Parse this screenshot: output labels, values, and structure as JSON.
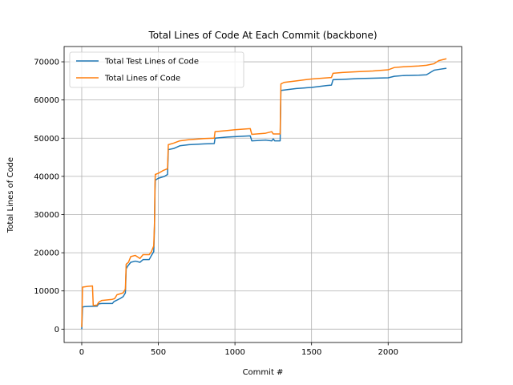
{
  "chart_data": {
    "type": "line",
    "title": "Total Lines of Code At Each Commit (backbone)",
    "xlabel": "Commit #",
    "ylabel": "Total Lines of Code",
    "xlim": [
      -115,
      2480
    ],
    "ylim": [
      -3500,
      74000
    ],
    "xticks": [
      0,
      500,
      1000,
      1500,
      2000
    ],
    "yticks": [
      0,
      10000,
      20000,
      30000,
      40000,
      50000,
      60000,
      70000
    ],
    "grid": true,
    "legend_position": "upper-left",
    "series": [
      {
        "name": "Total Test Lines of Code",
        "color": "#1f77b4",
        "points": [
          [
            0,
            0
          ],
          [
            5,
            5800
          ],
          [
            20,
            5900
          ],
          [
            50,
            5950
          ],
          [
            100,
            6000
          ],
          [
            110,
            6600
          ],
          [
            130,
            6700
          ],
          [
            200,
            6700
          ],
          [
            210,
            7200
          ],
          [
            250,
            8000
          ],
          [
            270,
            8500
          ],
          [
            285,
            9500
          ],
          [
            290,
            15800
          ],
          [
            300,
            16500
          ],
          [
            320,
            17500
          ],
          [
            350,
            17800
          ],
          [
            380,
            17500
          ],
          [
            400,
            18200
          ],
          [
            440,
            18200
          ],
          [
            455,
            19300
          ],
          [
            470,
            20300
          ],
          [
            475,
            27000
          ],
          [
            478,
            36000
          ],
          [
            480,
            39000
          ],
          [
            500,
            39500
          ],
          [
            540,
            40000
          ],
          [
            560,
            40500
          ],
          [
            565,
            47000
          ],
          [
            600,
            47300
          ],
          [
            640,
            48000
          ],
          [
            700,
            48300
          ],
          [
            800,
            48500
          ],
          [
            865,
            48600
          ],
          [
            870,
            50000
          ],
          [
            950,
            50300
          ],
          [
            1000,
            50400
          ],
          [
            1050,
            50500
          ],
          [
            1100,
            50600
          ],
          [
            1110,
            49300
          ],
          [
            1200,
            49500
          ],
          [
            1240,
            49300
          ],
          [
            1250,
            49800
          ],
          [
            1260,
            49300
          ],
          [
            1295,
            49300
          ],
          [
            1300,
            62500
          ],
          [
            1400,
            63000
          ],
          [
            1500,
            63300
          ],
          [
            1600,
            63800
          ],
          [
            1630,
            63900
          ],
          [
            1640,
            65300
          ],
          [
            1700,
            65400
          ],
          [
            1800,
            65600
          ],
          [
            1900,
            65700
          ],
          [
            2000,
            65800
          ],
          [
            2040,
            66200
          ],
          [
            2100,
            66400
          ],
          [
            2200,
            66500
          ],
          [
            2250,
            66600
          ],
          [
            2300,
            67800
          ],
          [
            2330,
            68000
          ],
          [
            2380,
            68300
          ]
        ]
      },
      {
        "name": "Total Lines of Code",
        "color": "#ff7f0e",
        "points": [
          [
            0,
            500
          ],
          [
            5,
            11000
          ],
          [
            40,
            11200
          ],
          [
            70,
            11300
          ],
          [
            75,
            6200
          ],
          [
            100,
            6300
          ],
          [
            110,
            7000
          ],
          [
            130,
            7500
          ],
          [
            200,
            7800
          ],
          [
            215,
            8000
          ],
          [
            230,
            9000
          ],
          [
            270,
            9500
          ],
          [
            285,
            10500
          ],
          [
            290,
            17000
          ],
          [
            305,
            17500
          ],
          [
            320,
            19000
          ],
          [
            350,
            19300
          ],
          [
            380,
            18500
          ],
          [
            400,
            19500
          ],
          [
            440,
            19500
          ],
          [
            455,
            20300
          ],
          [
            470,
            21800
          ],
          [
            475,
            28000
          ],
          [
            478,
            38000
          ],
          [
            480,
            40500
          ],
          [
            500,
            40800
          ],
          [
            530,
            41500
          ],
          [
            560,
            42000
          ],
          [
            565,
            48300
          ],
          [
            600,
            48700
          ],
          [
            640,
            49300
          ],
          [
            700,
            49600
          ],
          [
            800,
            49900
          ],
          [
            865,
            50000
          ],
          [
            870,
            51700
          ],
          [
            950,
            52000
          ],
          [
            1000,
            52200
          ],
          [
            1100,
            52500
          ],
          [
            1110,
            51000
          ],
          [
            1200,
            51300
          ],
          [
            1240,
            51700
          ],
          [
            1250,
            51100
          ],
          [
            1295,
            51100
          ],
          [
            1300,
            64200
          ],
          [
            1320,
            64600
          ],
          [
            1400,
            65000
          ],
          [
            1500,
            65500
          ],
          [
            1630,
            65900
          ],
          [
            1640,
            67000
          ],
          [
            1700,
            67200
          ],
          [
            1800,
            67400
          ],
          [
            1900,
            67600
          ],
          [
            2000,
            67900
          ],
          [
            2040,
            68500
          ],
          [
            2100,
            68700
          ],
          [
            2200,
            68900
          ],
          [
            2250,
            69100
          ],
          [
            2300,
            69500
          ],
          [
            2330,
            70300
          ],
          [
            2380,
            70800
          ]
        ]
      }
    ]
  }
}
